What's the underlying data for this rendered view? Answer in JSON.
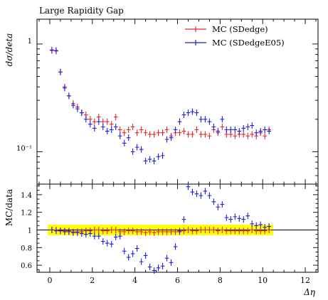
{
  "chart_data": [
    {
      "type": "scatter",
      "title": "Large Rapidity Gap",
      "ylabel": "dσ/deta",
      "xlabel": "",
      "xlim": [
        -0.6,
        12.6
      ],
      "ylim": [
        0.05,
        1.7
      ],
      "yscale": "log",
      "legend_position": "top-right",
      "y_tick_labels": [
        "1",
        "10⁻¹"
      ],
      "series": [
        {
          "name": "MC (SDedge)",
          "color": "#e8262a",
          "x": [
            0.1,
            0.3,
            0.5,
            0.7,
            0.9,
            1.1,
            1.3,
            1.5,
            1.7,
            1.9,
            2.1,
            2.3,
            2.5,
            2.7,
            2.9,
            3.1,
            3.3,
            3.5,
            3.7,
            3.9,
            4.1,
            4.3,
            4.5,
            4.7,
            4.9,
            5.1,
            5.3,
            5.5,
            5.7,
            5.9,
            6.1,
            6.3,
            6.5,
            6.7,
            6.9,
            7.1,
            7.3,
            7.5,
            7.7,
            7.9,
            8.1,
            8.3,
            8.5,
            8.7,
            8.9,
            9.1,
            9.3,
            9.5,
            9.7,
            9.9,
            10.1,
            10.3
          ],
          "y": [
            0.87,
            0.86,
            0.55,
            0.4,
            0.33,
            0.28,
            0.26,
            0.23,
            0.22,
            0.2,
            0.19,
            0.21,
            0.19,
            0.19,
            0.18,
            0.21,
            0.16,
            0.15,
            0.16,
            0.17,
            0.15,
            0.16,
            0.15,
            0.145,
            0.145,
            0.15,
            0.15,
            0.16,
            0.14,
            0.15,
            0.15,
            0.155,
            0.145,
            0.145,
            0.16,
            0.145,
            0.145,
            0.14,
            0.16,
            0.15,
            0.17,
            0.145,
            0.145,
            0.14,
            0.145,
            0.145,
            0.14,
            0.145,
            0.14,
            0.15,
            0.14,
            0.16
          ]
        },
        {
          "name": "MC (SDedgeE05)",
          "color": "#1f1fde",
          "x": [
            0.1,
            0.3,
            0.5,
            0.7,
            0.9,
            1.1,
            1.3,
            1.5,
            1.7,
            1.9,
            2.1,
            2.3,
            2.5,
            2.7,
            2.9,
            3.1,
            3.3,
            3.5,
            3.7,
            3.9,
            4.1,
            4.3,
            4.5,
            4.7,
            4.9,
            5.1,
            5.3,
            5.5,
            5.7,
            5.9,
            6.1,
            6.3,
            6.5,
            6.7,
            6.9,
            7.1,
            7.3,
            7.5,
            7.7,
            7.9,
            8.1,
            8.3,
            8.5,
            8.7,
            8.9,
            9.1,
            9.3,
            9.5,
            9.7,
            9.9,
            10.1,
            10.3
          ],
          "y": [
            0.88,
            0.87,
            0.55,
            0.39,
            0.33,
            0.27,
            0.25,
            0.23,
            0.2,
            0.18,
            0.165,
            0.19,
            0.17,
            0.155,
            0.16,
            0.17,
            0.14,
            0.12,
            0.135,
            0.1,
            0.11,
            0.105,
            0.082,
            0.085,
            0.082,
            0.09,
            0.092,
            0.13,
            0.135,
            0.16,
            0.19,
            0.22,
            0.23,
            0.235,
            0.23,
            0.2,
            0.2,
            0.19,
            0.17,
            0.155,
            0.2,
            0.16,
            0.16,
            0.16,
            0.155,
            0.165,
            0.17,
            0.175,
            0.15,
            0.155,
            0.16,
            0.155
          ]
        }
      ]
    },
    {
      "type": "scatter",
      "title": "",
      "xlabel": "Δη",
      "ylabel": "MC/data",
      "xlim": [
        -0.6,
        12.6
      ],
      "ylim": [
        0.52,
        1.52
      ],
      "x_ticks": [
        0,
        2,
        4,
        6,
        8,
        10,
        12
      ],
      "y_ticks": [
        0.6,
        0.8,
        1,
        1.2,
        1.4
      ],
      "y_tick_labels": [
        "0.6",
        "0.8",
        "1",
        "1.2",
        "1.4"
      ],
      "band": {
        "color": "#ffff00",
        "x": [
          -0.1,
          10.5
        ],
        "y": [
          0.94,
          1.06
        ]
      },
      "series": [
        {
          "name": "MC (SDedge)",
          "color": "#e8262a",
          "x": [
            0.1,
            0.3,
            0.5,
            0.7,
            0.9,
            1.1,
            1.3,
            1.5,
            1.7,
            1.9,
            2.1,
            2.3,
            2.5,
            2.7,
            2.9,
            3.1,
            3.3,
            3.5,
            3.7,
            3.9,
            4.1,
            4.3,
            4.5,
            4.7,
            4.9,
            5.1,
            5.3,
            5.5,
            5.7,
            5.9,
            6.1,
            6.3,
            6.5,
            6.7,
            6.9,
            7.1,
            7.3,
            7.5,
            7.7,
            7.9,
            8.1,
            8.3,
            8.5,
            8.7,
            8.9,
            9.1,
            9.3,
            9.5,
            9.7,
            9.9,
            10.1,
            10.3
          ],
          "y": [
            1,
            1,
            0.99,
            0.99,
            0.99,
            0.98,
            0.98,
            0.98,
            0.99,
            0.99,
            1,
            1,
            0.99,
            0.99,
            1,
            1,
            0.98,
            0.98,
            0.99,
            0.99,
            0.98,
            0.98,
            0.97,
            0.98,
            0.97,
            0.98,
            0.98,
            0.98,
            0.98,
            0.98,
            0.99,
            0.99,
            1,
            0.99,
            0.99,
            1,
            1,
            1,
            1,
            0.99,
            1,
            0.99,
            0.99,
            0.99,
            0.99,
            0.99,
            0.99,
            1,
            0.99,
            0.99,
            0.99,
            1
          ]
        },
        {
          "name": "MC (SDedgeE05)",
          "color": "#1f1fde",
          "x": [
            0.1,
            0.3,
            0.5,
            0.7,
            0.9,
            1.1,
            1.3,
            1.5,
            1.7,
            1.9,
            2.1,
            2.3,
            2.5,
            2.7,
            2.9,
            3.1,
            3.3,
            3.5,
            3.7,
            3.9,
            4.1,
            4.3,
            4.5,
            4.7,
            4.9,
            5.1,
            5.3,
            5.5,
            5.7,
            5.9,
            6.1,
            6.3,
            6.5,
            6.7,
            6.9,
            7.1,
            7.3,
            7.5,
            7.7,
            7.9,
            8.1,
            8.3,
            8.5,
            8.7,
            8.9,
            9.1,
            9.3,
            9.5,
            9.7,
            9.9,
            10.1,
            10.3
          ],
          "y": [
            1,
            0.99,
            0.99,
            0.98,
            0.98,
            0.97,
            0.97,
            0.96,
            0.95,
            0.96,
            0.93,
            0.93,
            0.87,
            0.85,
            0.84,
            0.92,
            0.93,
            0.76,
            0.69,
            0.73,
            0.79,
            0.64,
            0.71,
            0.58,
            0.54,
            0.57,
            0.59,
            0.68,
            0.63,
            0.81,
            0.98,
            1.12,
            1.49,
            1.43,
            1.41,
            1.39,
            1.44,
            1.39,
            1.32,
            1.26,
            1.29,
            1.14,
            1.12,
            1.15,
            1.13,
            1.12,
            1.16,
            1.07,
            1.05,
            1.06,
            1.03,
            1.04
          ]
        }
      ]
    }
  ]
}
